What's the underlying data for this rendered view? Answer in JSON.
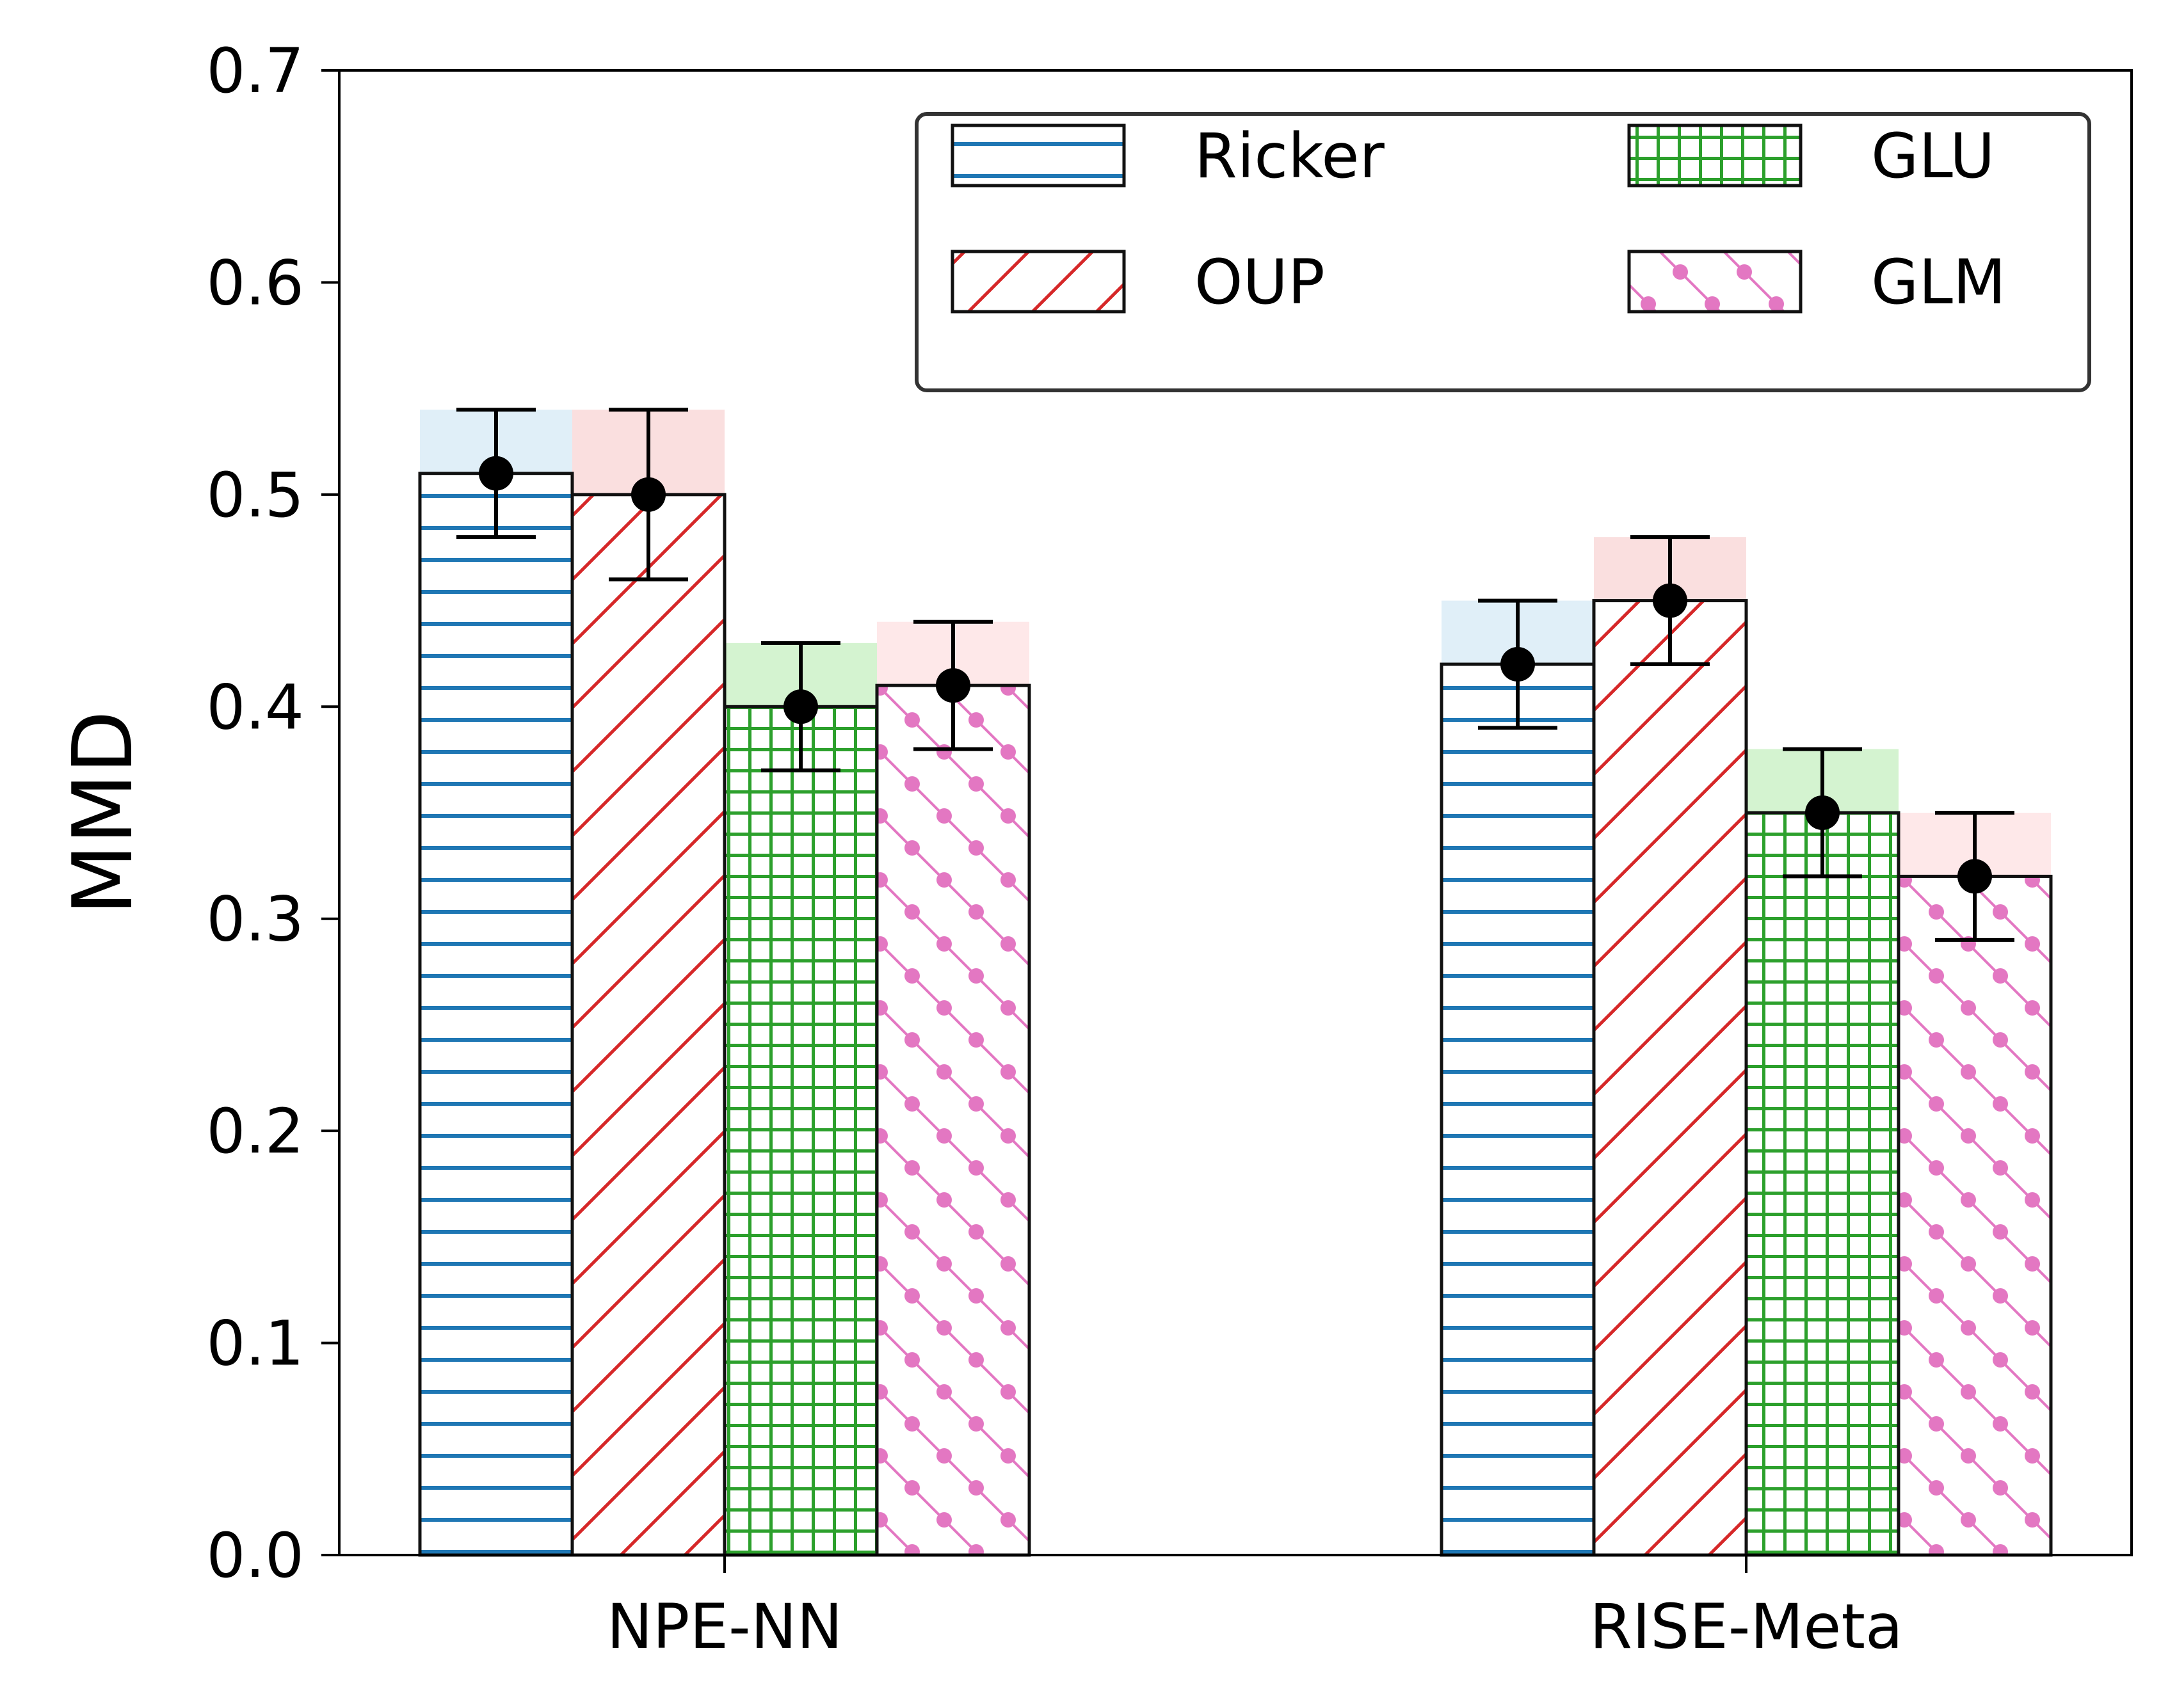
{
  "chart_data": {
    "type": "bar",
    "title": "",
    "xlabel": "",
    "ylabel": "MMD",
    "ylim": [
      0,
      0.7
    ],
    "yticks": [
      "0.0",
      "0.1",
      "0.2",
      "0.3",
      "0.4",
      "0.5",
      "0.6",
      "0.7"
    ],
    "grid": false,
    "legend_position": "top-right",
    "categories": [
      "NPE-NN",
      "RISE-Meta"
    ],
    "series": [
      {
        "name": "Ricker",
        "color": "#1f77b4",
        "shade": "#d6eaf5",
        "hatch": "horizontal-lines",
        "values": [
          0.51,
          0.42
        ],
        "err_low": [
          0.48,
          0.39
        ],
        "err_high": [
          0.54,
          0.45
        ]
      },
      {
        "name": "OUP",
        "color": "#d62728",
        "shade": "#f8d4d4",
        "hatch": "diagonal-lines",
        "values": [
          0.5,
          0.45
        ],
        "err_low": [
          0.46,
          0.42
        ],
        "err_high": [
          0.54,
          0.48
        ]
      },
      {
        "name": "GLU",
        "color": "#2ca02c",
        "shade": "#c6efc0",
        "hatch": "grid",
        "values": [
          0.4,
          0.35
        ],
        "err_low": [
          0.37,
          0.32
        ],
        "err_high": [
          0.43,
          0.38
        ]
      },
      {
        "name": "GLM",
        "color": "#e377c2",
        "shade": "#fde0e2",
        "hatch": "dots-and-back-diagonal",
        "values": [
          0.41,
          0.32
        ],
        "err_low": [
          0.38,
          0.29
        ],
        "err_high": [
          0.44,
          0.35
        ]
      }
    ]
  }
}
